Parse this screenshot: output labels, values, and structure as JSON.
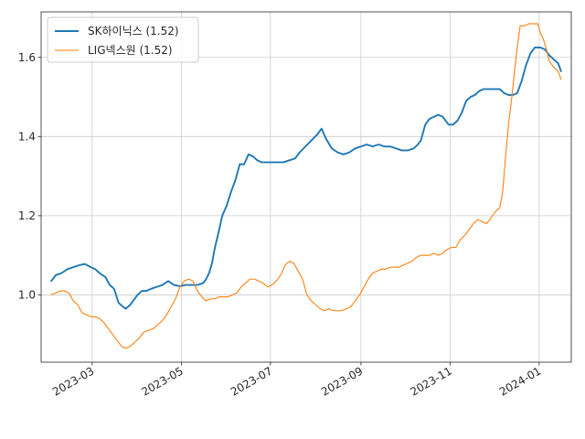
{
  "chart_data": {
    "type": "line",
    "title": "",
    "xlabel": "",
    "ylabel": "",
    "xlim": [
      "2023-01-25",
      "2024-01-23"
    ],
    "ylim": [
      0.83,
      1.715
    ],
    "grid": true,
    "legend": "top-left",
    "x_ticks": [
      {
        "date": "2023-03-01",
        "label": "2023-03"
      },
      {
        "date": "2023-05-01",
        "label": "2023-05"
      },
      {
        "date": "2023-07-01",
        "label": "2023-07"
      },
      {
        "date": "2023-09-01",
        "label": "2023-09"
      },
      {
        "date": "2023-11-01",
        "label": "2023-11"
      },
      {
        "date": "2024-01-01",
        "label": "2024-01"
      }
    ],
    "y_ticks": [
      {
        "value": 1.0,
        "label": "1.0"
      },
      {
        "value": 1.2,
        "label": "1.2"
      },
      {
        "value": 1.4,
        "label": "1.4"
      },
      {
        "value": 1.6,
        "label": "1.6"
      }
    ],
    "series": [
      {
        "name": "SK하이닉스 (1.52)",
        "color": "#1f77b4",
        "stroke_width": "thick",
        "points": [
          [
            "2023-02-01",
            1.035
          ],
          [
            "2023-02-04",
            1.05
          ],
          [
            "2023-02-08",
            1.055
          ],
          [
            "2023-02-12",
            1.065
          ],
          [
            "2023-02-16",
            1.07
          ],
          [
            "2023-02-20",
            1.075
          ],
          [
            "2023-02-24",
            1.078
          ],
          [
            "2023-02-28",
            1.07
          ],
          [
            "2023-03-03",
            1.065
          ],
          [
            "2023-03-06",
            1.055
          ],
          [
            "2023-03-10",
            1.045
          ],
          [
            "2023-03-13",
            1.025
          ],
          [
            "2023-03-16",
            1.015
          ],
          [
            "2023-03-19",
            0.98
          ],
          [
            "2023-03-22",
            0.97
          ],
          [
            "2023-03-24",
            0.965
          ],
          [
            "2023-03-27",
            0.975
          ],
          [
            "2023-03-29",
            0.985
          ],
          [
            "2023-04-01",
            1.0
          ],
          [
            "2023-04-04",
            1.01
          ],
          [
            "2023-04-07",
            1.01
          ],
          [
            "2023-04-10",
            1.015
          ],
          [
            "2023-04-14",
            1.02
          ],
          [
            "2023-04-18",
            1.025
          ],
          [
            "2023-04-22",
            1.035
          ],
          [
            "2023-04-26",
            1.025
          ],
          [
            "2023-04-30",
            1.022
          ],
          [
            "2023-05-04",
            1.025
          ],
          [
            "2023-05-08",
            1.025
          ],
          [
            "2023-05-12",
            1.025
          ],
          [
            "2023-05-16",
            1.03
          ],
          [
            "2023-05-18",
            1.04
          ],
          [
            "2023-05-20",
            1.055
          ],
          [
            "2023-05-22",
            1.08
          ],
          [
            "2023-05-24",
            1.12
          ],
          [
            "2023-05-26",
            1.15
          ],
          [
            "2023-05-29",
            1.2
          ],
          [
            "2023-06-01",
            1.225
          ],
          [
            "2023-06-04",
            1.26
          ],
          [
            "2023-06-07",
            1.29
          ],
          [
            "2023-06-10",
            1.33
          ],
          [
            "2023-06-13",
            1.33
          ],
          [
            "2023-06-16",
            1.355
          ],
          [
            "2023-06-19",
            1.35
          ],
          [
            "2023-06-22",
            1.34
          ],
          [
            "2023-06-25",
            1.335
          ],
          [
            "2023-06-28",
            1.335
          ],
          [
            "2023-07-02",
            1.335
          ],
          [
            "2023-07-06",
            1.335
          ],
          [
            "2023-07-10",
            1.335
          ],
          [
            "2023-07-14",
            1.34
          ],
          [
            "2023-07-18",
            1.345
          ],
          [
            "2023-07-21",
            1.36
          ],
          [
            "2023-07-25",
            1.375
          ],
          [
            "2023-07-29",
            1.39
          ],
          [
            "2023-08-02",
            1.405
          ],
          [
            "2023-08-05",
            1.42
          ],
          [
            "2023-08-08",
            1.395
          ],
          [
            "2023-08-12",
            1.37
          ],
          [
            "2023-08-16",
            1.36
          ],
          [
            "2023-08-20",
            1.355
          ],
          [
            "2023-08-24",
            1.36
          ],
          [
            "2023-08-28",
            1.37
          ],
          [
            "2023-09-01",
            1.375
          ],
          [
            "2023-09-05",
            1.38
          ],
          [
            "2023-09-09",
            1.375
          ],
          [
            "2023-09-13",
            1.38
          ],
          [
            "2023-09-17",
            1.375
          ],
          [
            "2023-09-21",
            1.375
          ],
          [
            "2023-09-25",
            1.37
          ],
          [
            "2023-09-29",
            1.365
          ],
          [
            "2023-10-03",
            1.365
          ],
          [
            "2023-10-07",
            1.37
          ],
          [
            "2023-10-10",
            1.38
          ],
          [
            "2023-10-12",
            1.39
          ],
          [
            "2023-10-15",
            1.43
          ],
          [
            "2023-10-18",
            1.445
          ],
          [
            "2023-10-21",
            1.45
          ],
          [
            "2023-10-24",
            1.455
          ],
          [
            "2023-10-27",
            1.45
          ],
          [
            "2023-10-31",
            1.43
          ],
          [
            "2023-11-03",
            1.43
          ],
          [
            "2023-11-06",
            1.44
          ],
          [
            "2023-11-09",
            1.46
          ],
          [
            "2023-11-12",
            1.49
          ],
          [
            "2023-11-15",
            1.5
          ],
          [
            "2023-11-18",
            1.505
          ],
          [
            "2023-11-21",
            1.515
          ],
          [
            "2023-11-24",
            1.52
          ],
          [
            "2023-11-28",
            1.52
          ],
          [
            "2023-12-02",
            1.52
          ],
          [
            "2023-12-05",
            1.52
          ],
          [
            "2023-12-08",
            1.51
          ],
          [
            "2023-12-11",
            1.505
          ],
          [
            "2023-12-14",
            1.505
          ],
          [
            "2023-12-17",
            1.51
          ],
          [
            "2023-12-20",
            1.54
          ],
          [
            "2023-12-23",
            1.58
          ],
          [
            "2023-12-26",
            1.61
          ],
          [
            "2023-12-29",
            1.625
          ],
          [
            "2024-01-02",
            1.625
          ],
          [
            "2024-01-05",
            1.62
          ],
          [
            "2024-01-08",
            1.605
          ],
          [
            "2024-01-11",
            1.595
          ],
          [
            "2024-01-14",
            1.585
          ],
          [
            "2024-01-16",
            1.565
          ]
        ]
      },
      {
        "name": "LIG넥스원 (1.52)",
        "color": "#ff7f0e",
        "stroke_width": "thin",
        "points": [
          [
            "2023-02-01",
            1.0
          ],
          [
            "2023-02-04",
            1.005
          ],
          [
            "2023-02-07",
            1.01
          ],
          [
            "2023-02-10",
            1.01
          ],
          [
            "2023-02-13",
            1.005
          ],
          [
            "2023-02-16",
            0.985
          ],
          [
            "2023-02-19",
            0.975
          ],
          [
            "2023-02-22",
            0.955
          ],
          [
            "2023-02-25",
            0.95
          ],
          [
            "2023-02-28",
            0.945
          ],
          [
            "2023-03-03",
            0.945
          ],
          [
            "2023-03-06",
            0.94
          ],
          [
            "2023-03-09",
            0.93
          ],
          [
            "2023-03-12",
            0.915
          ],
          [
            "2023-03-15",
            0.9
          ],
          [
            "2023-03-18",
            0.885
          ],
          [
            "2023-03-21",
            0.87
          ],
          [
            "2023-03-24",
            0.865
          ],
          [
            "2023-03-27",
            0.87
          ],
          [
            "2023-03-30",
            0.88
          ],
          [
            "2023-04-02",
            0.89
          ],
          [
            "2023-04-05",
            0.905
          ],
          [
            "2023-04-08",
            0.91
          ],
          [
            "2023-04-12",
            0.915
          ],
          [
            "2023-04-15",
            0.925
          ],
          [
            "2023-04-18",
            0.935
          ],
          [
            "2023-04-21",
            0.95
          ],
          [
            "2023-04-24",
            0.97
          ],
          [
            "2023-04-27",
            0.99
          ],
          [
            "2023-04-30",
            1.02
          ],
          [
            "2023-05-03",
            1.035
          ],
          [
            "2023-05-06",
            1.04
          ],
          [
            "2023-05-09",
            1.035
          ],
          [
            "2023-05-12",
            1.01
          ],
          [
            "2023-05-15",
            0.995
          ],
          [
            "2023-05-18",
            0.985
          ],
          [
            "2023-05-21",
            0.99
          ],
          [
            "2023-05-24",
            0.99
          ],
          [
            "2023-05-27",
            0.995
          ],
          [
            "2023-05-30",
            0.995
          ],
          [
            "2023-06-02",
            0.995
          ],
          [
            "2023-06-05",
            1.0
          ],
          [
            "2023-06-08",
            1.005
          ],
          [
            "2023-06-11",
            1.02
          ],
          [
            "2023-06-14",
            1.03
          ],
          [
            "2023-06-17",
            1.04
          ],
          [
            "2023-06-20",
            1.04
          ],
          [
            "2023-06-23",
            1.035
          ],
          [
            "2023-06-26",
            1.03
          ],
          [
            "2023-06-29",
            1.02
          ],
          [
            "2023-07-02",
            1.025
          ],
          [
            "2023-07-05",
            1.035
          ],
          [
            "2023-07-08",
            1.05
          ],
          [
            "2023-07-11",
            1.075
          ],
          [
            "2023-07-14",
            1.085
          ],
          [
            "2023-07-17",
            1.08
          ],
          [
            "2023-07-20",
            1.06
          ],
          [
            "2023-07-23",
            1.04
          ],
          [
            "2023-07-26",
            1.0
          ],
          [
            "2023-07-29",
            0.985
          ],
          [
            "2023-08-01",
            0.975
          ],
          [
            "2023-08-04",
            0.965
          ],
          [
            "2023-08-07",
            0.96
          ],
          [
            "2023-08-10",
            0.965
          ],
          [
            "2023-08-13",
            0.96
          ],
          [
            "2023-08-16",
            0.96
          ],
          [
            "2023-08-19",
            0.96
          ],
          [
            "2023-08-22",
            0.965
          ],
          [
            "2023-08-25",
            0.97
          ],
          [
            "2023-08-28",
            0.985
          ],
          [
            "2023-08-31",
            1.0
          ],
          [
            "2023-09-03",
            1.02
          ],
          [
            "2023-09-06",
            1.04
          ],
          [
            "2023-09-09",
            1.055
          ],
          [
            "2023-09-12",
            1.06
          ],
          [
            "2023-09-15",
            1.065
          ],
          [
            "2023-09-18",
            1.065
          ],
          [
            "2023-09-21",
            1.07
          ],
          [
            "2023-09-24",
            1.07
          ],
          [
            "2023-09-27",
            1.07
          ],
          [
            "2023-09-30",
            1.075
          ],
          [
            "2023-10-03",
            1.08
          ],
          [
            "2023-10-06",
            1.085
          ],
          [
            "2023-10-09",
            1.095
          ],
          [
            "2023-10-12",
            1.1
          ],
          [
            "2023-10-15",
            1.1
          ],
          [
            "2023-10-18",
            1.1
          ],
          [
            "2023-10-21",
            1.105
          ],
          [
            "2023-10-24",
            1.1
          ],
          [
            "2023-10-27",
            1.105
          ],
          [
            "2023-10-30",
            1.115
          ],
          [
            "2023-11-02",
            1.12
          ],
          [
            "2023-11-05",
            1.12
          ],
          [
            "2023-11-08",
            1.14
          ],
          [
            "2023-11-11",
            1.15
          ],
          [
            "2023-11-14",
            1.165
          ],
          [
            "2023-11-17",
            1.18
          ],
          [
            "2023-11-20",
            1.19
          ],
          [
            "2023-11-23",
            1.185
          ],
          [
            "2023-11-26",
            1.18
          ],
          [
            "2023-11-29",
            1.195
          ],
          [
            "2023-12-02",
            1.21
          ],
          [
            "2023-12-05",
            1.22
          ],
          [
            "2023-12-07",
            1.26
          ],
          [
            "2023-12-09",
            1.35
          ],
          [
            "2023-12-11",
            1.43
          ],
          [
            "2023-12-13",
            1.49
          ],
          [
            "2023-12-15",
            1.56
          ],
          [
            "2023-12-17",
            1.625
          ],
          [
            "2023-12-19",
            1.68
          ],
          [
            "2023-12-22",
            1.68
          ],
          [
            "2023-12-25",
            1.685
          ],
          [
            "2023-12-28",
            1.685
          ],
          [
            "2023-12-31",
            1.685
          ],
          [
            "2024-01-02",
            1.66
          ],
          [
            "2024-01-04",
            1.645
          ],
          [
            "2024-01-06",
            1.62
          ],
          [
            "2024-01-08",
            1.59
          ],
          [
            "2024-01-11",
            1.575
          ],
          [
            "2024-01-14",
            1.565
          ],
          [
            "2024-01-16",
            1.545
          ]
        ]
      }
    ]
  }
}
